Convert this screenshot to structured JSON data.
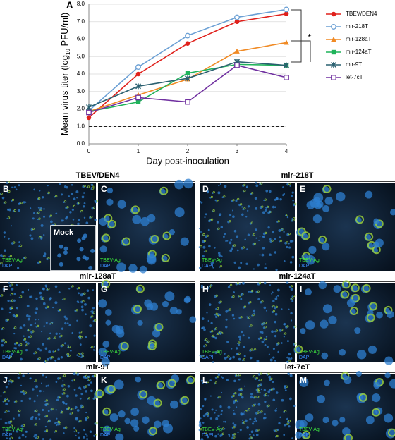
{
  "chart_data": {
    "type": "line",
    "panel_label": "A",
    "xlabel": "Day post-inoculation",
    "ylabel": [
      "Mean virus titer (log",
      "10",
      " PFU/ml)"
    ],
    "x": [
      0,
      1,
      2,
      3,
      4
    ],
    "xlim": [
      0,
      4
    ],
    "xticks": [
      0,
      1,
      2,
      3,
      4
    ],
    "ylim": [
      0,
      8
    ],
    "yticks": [
      {
        "value": 0,
        "label": "0.0"
      },
      {
        "value": 1,
        "label": "1.0"
      },
      {
        "value": 2,
        "label": "2.0"
      },
      {
        "value": 3,
        "label": "3.0"
      },
      {
        "value": 4,
        "label": "4.0"
      },
      {
        "value": 5,
        "label": "5.0"
      },
      {
        "value": 6,
        "label": "6.0"
      },
      {
        "value": 7,
        "label": "7.0"
      },
      {
        "value": 8,
        "label": "8.0"
      }
    ],
    "grid": true,
    "reference_line": 1,
    "annotation": "*",
    "legend": "right",
    "series": [
      {
        "name": "TBEV/DEN4",
        "color": "#e0201b",
        "marker": "circle",
        "values": [
          1.5,
          4.0,
          5.75,
          7.0,
          7.45
        ]
      },
      {
        "name": "mir-218T",
        "color": "#6a9fd4",
        "marker": "open-circle",
        "values": [
          1.9,
          4.4,
          6.2,
          7.25,
          7.7
        ]
      },
      {
        "name": "mir-128aT",
        "color": "#f08a24",
        "marker": "triangle",
        "values": [
          1.85,
          2.8,
          3.7,
          5.3,
          5.8
        ]
      },
      {
        "name": "mir-124aT",
        "color": "#1fb35a",
        "marker": "square",
        "values": [
          1.85,
          2.4,
          4.05,
          4.55,
          4.5
        ]
      },
      {
        "name": "mir-9T",
        "color": "#2a6070",
        "marker": "star",
        "values": [
          2.1,
          3.3,
          3.75,
          4.7,
          4.5
        ]
      },
      {
        "name": "let-7cT",
        "color": "#7030a0",
        "marker": "open-square",
        "values": [
          1.8,
          2.65,
          2.4,
          4.5,
          3.8
        ]
      }
    ]
  },
  "panels": {
    "headers": [
      "TBEV/DEN4",
      "mir-218T",
      "mir-128aT",
      "mir-124aT",
      "mir-9T",
      "let-7cT"
    ],
    "letters": [
      "B",
      "C",
      "D",
      "E",
      "F",
      "G",
      "H",
      "I",
      "J",
      "K",
      "L",
      "M"
    ],
    "inset": "Mock",
    "stains": [
      "TBEV-Ag",
      "DAPI"
    ]
  }
}
